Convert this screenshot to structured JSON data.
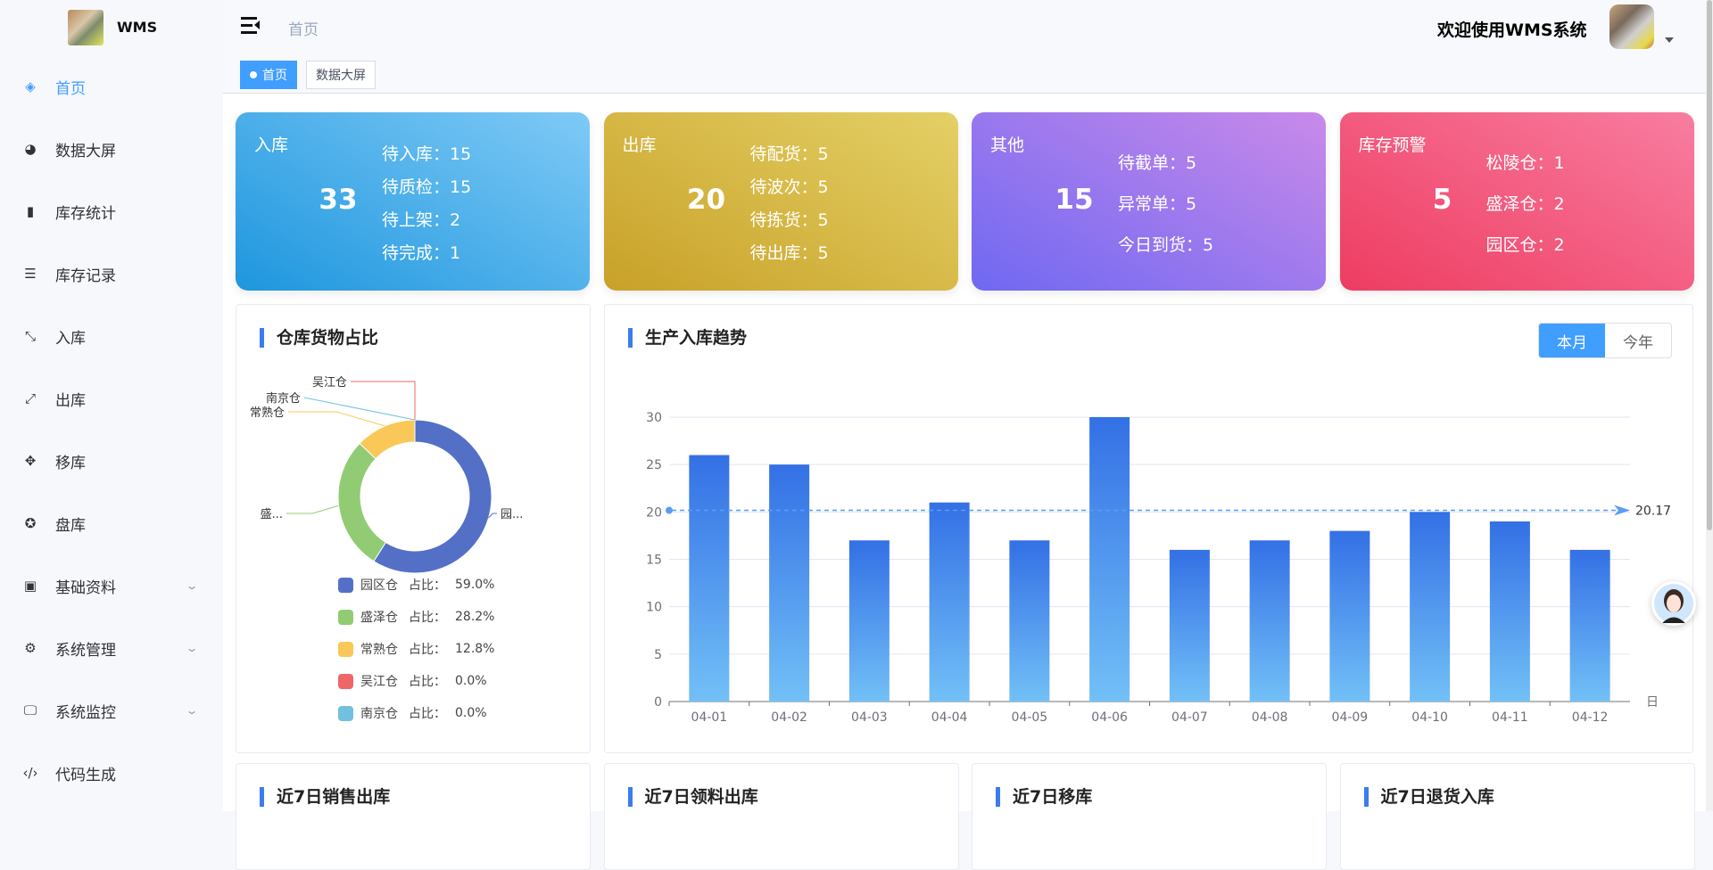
{
  "app": {
    "name": "WMS",
    "welcome": "欢迎使用WMS系统"
  },
  "header": {
    "breadcrumb": "首页"
  },
  "tags": [
    "首页",
    "数据大屏"
  ],
  "sidebar": {
    "items": [
      {
        "label": "首页",
        "icon": "layers-icon",
        "active": true
      },
      {
        "label": "数据大屏",
        "icon": "dashboard-icon"
      },
      {
        "label": "库存统计",
        "icon": "bar-chart-icon"
      },
      {
        "label": "库存记录",
        "icon": "list-icon"
      },
      {
        "label": "入库",
        "icon": "shrink-icon"
      },
      {
        "label": "出库",
        "icon": "expand-icon"
      },
      {
        "label": "移库",
        "icon": "move-icon"
      },
      {
        "label": "盘库",
        "icon": "aperture-icon"
      },
      {
        "label": "基础资料",
        "icon": "excel-icon",
        "expandable": true
      },
      {
        "label": "系统管理",
        "icon": "gear-icon",
        "expandable": true
      },
      {
        "label": "系统监控",
        "icon": "monitor-icon",
        "expandable": true
      },
      {
        "label": "代码生成",
        "icon": "code-icon"
      }
    ]
  },
  "cards": [
    {
      "title": "入库",
      "total": "33",
      "items": [
        "待入库：15",
        "待质检：15",
        "待上架：2",
        "待完成：1"
      ],
      "colors": [
        "#1e96de",
        "#7fcaf6"
      ]
    },
    {
      "title": "出库",
      "total": "20",
      "items": [
        "待配货：5",
        "待波次：5",
        "待拣货：5",
        "待出库：5"
      ],
      "colors": [
        "#c8a128",
        "#e4d066"
      ]
    },
    {
      "title": "其他",
      "total": "15",
      "items": [
        "待截单：5",
        "异常单：5",
        "今日到货：5"
      ],
      "colors": [
        "#6f68f2",
        "#c98ae9"
      ]
    },
    {
      "title": "库存预警",
      "total": "5",
      "items": [
        "松陵仓：1",
        "盛泽仓：2",
        "园区仓：2"
      ],
      "colors": [
        "#ee3c61",
        "#f87da0"
      ]
    }
  ],
  "pie": {
    "title": "仓库货物占比",
    "ratio_label": "占比：",
    "chart_data": {
      "type": "pie",
      "donut": true,
      "slices": [
        {
          "name": "园区仓",
          "value": 59.0,
          "label": "园...",
          "pct": "59.0%",
          "color": "#5470c6"
        },
        {
          "name": "盛泽仓",
          "value": 28.2,
          "label": "盛...",
          "pct": "28.2%",
          "color": "#91cc75"
        },
        {
          "name": "常熟仓",
          "value": 12.8,
          "label": "常熟仓",
          "pct": "12.8%",
          "color": "#fac858"
        },
        {
          "name": "吴江仓",
          "value": 0.0,
          "label": "吴江仓",
          "pct": "0.0%",
          "color": "#ee6666"
        },
        {
          "name": "南京仓",
          "value": 0.0,
          "label": "南京仓",
          "pct": "0.0%",
          "color": "#73c0de"
        }
      ],
      "legend": "bottom"
    }
  },
  "trend": {
    "title": "生产入库趋势",
    "buttons": [
      {
        "label": "本月",
        "active": true
      },
      {
        "label": "今年"
      }
    ],
    "chart_data": {
      "type": "bar",
      "categories": [
        "04-01",
        "04-02",
        "04-03",
        "04-04",
        "04-05",
        "04-06",
        "04-07",
        "04-08",
        "04-09",
        "04-10",
        "04-11",
        "04-12"
      ],
      "values": [
        26,
        25,
        17,
        21,
        17,
        30,
        16,
        17,
        18,
        20,
        19,
        16
      ],
      "xlabel": "日",
      "ylim": [
        0,
        30
      ],
      "yticks": [
        0,
        5,
        10,
        15,
        20,
        25,
        30
      ],
      "grid": true,
      "average_line": {
        "value": "20.17"
      },
      "colors": [
        "#3370e5",
        "#72c0f7"
      ]
    }
  },
  "bottom_panels": [
    "近7日销售出库",
    "近7日领料出库",
    "近7日移库",
    "近7日退货入库"
  ]
}
